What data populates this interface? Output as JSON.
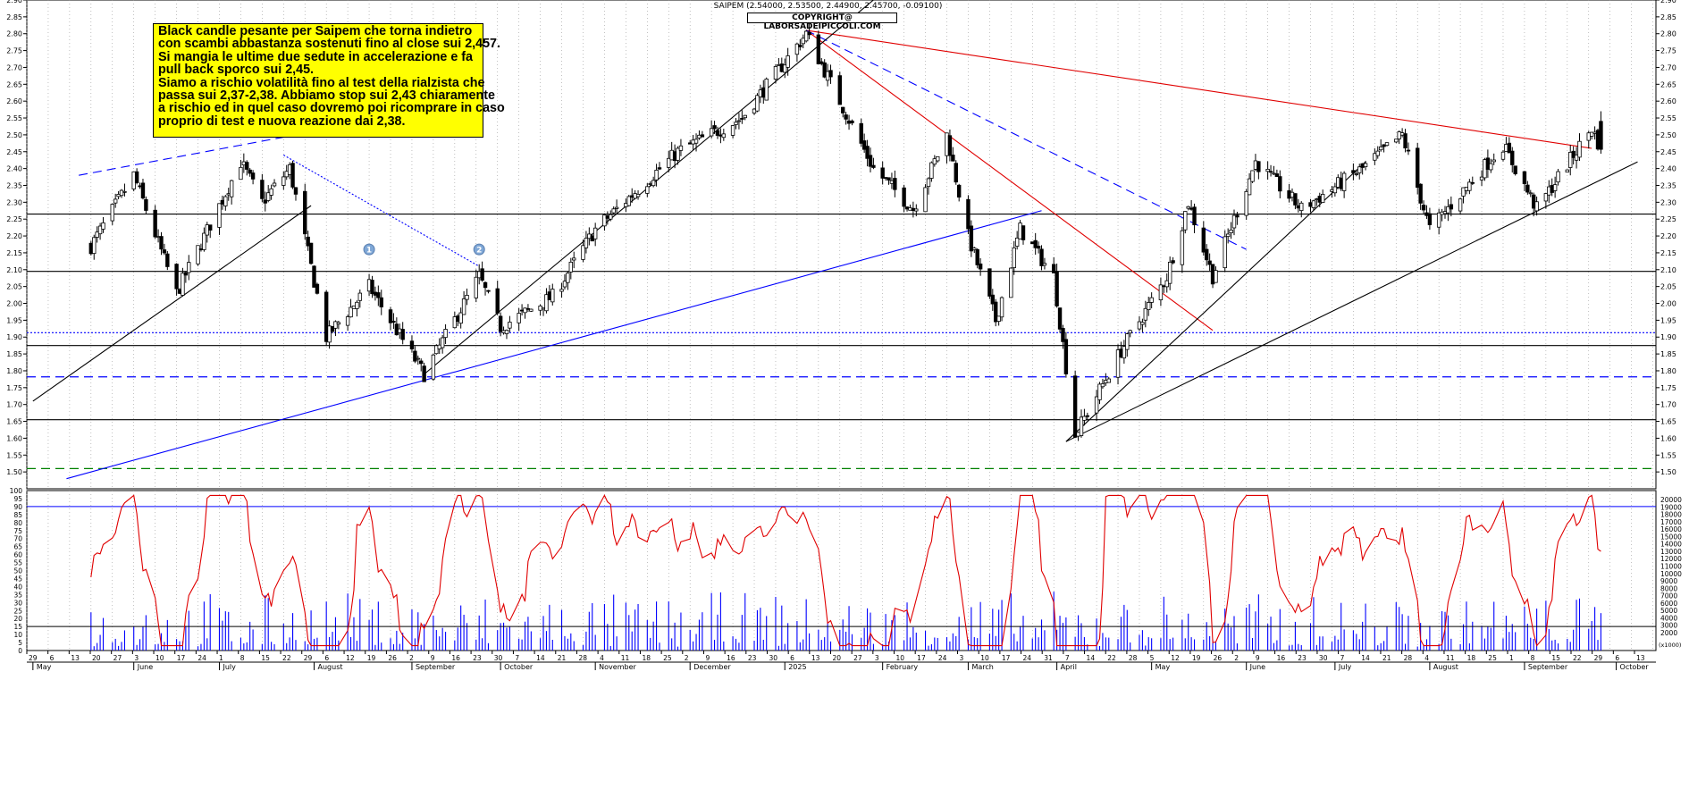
{
  "header": {
    "title": "SAIPEM (2.54000, 2.53500, 2.44900, 2.45700, -0.09100)",
    "copyright": "COPYRIGHT@ LABORSADEIPICCOLI.COM"
  },
  "annotation": {
    "lines": [
      "Black candle pesante per Saipem che torna indietro",
      "con scambi abbastanza sostenuti fino al close sui 2,457.",
      "Si mangia le ultime due sedute in accelerazione e fa",
      "pull back sporco sui 2,45.",
      "Siamo a rischio volatilità fino al test della rialzista che",
      "passa sui 2,37-2,38. Abbiamo stop sui 2,43 chiaramente",
      "a rischio ed in quel caso dovremo poi ricomprare in caso",
      "proprio di test e nuova reazione dai 2,38."
    ]
  },
  "colors": {
    "candle_up": "#ffffff",
    "candle_down": "#000000",
    "volume": "#0000ff",
    "oscillator": "#e00000",
    "note_bg": "#ffff00",
    "resistance": "#e00000",
    "support": "#000000",
    "blue_line": "#0000ff",
    "green_line": "#008000"
  },
  "chart_data": [
    {
      "type": "candlestick",
      "ylim": [
        1.45,
        2.9
      ],
      "y_ticks": [
        "2.90",
        "2.85",
        "2.80",
        "2.75",
        "2.70",
        "2.65",
        "2.60",
        "2.55",
        "2.50",
        "2.45",
        "2.40",
        "2.35",
        "2.30",
        "2.25",
        "2.20",
        "2.15",
        "2.10",
        "2.05",
        "2.00",
        "1.95",
        "1.90",
        "1.85",
        "1.80",
        "1.75",
        "1.70",
        "1.65",
        "1.60",
        "1.55",
        "1.50"
      ],
      "last_candle": {
        "open": 2.54,
        "high": 2.535,
        "low": 2.449,
        "close": 2.457,
        "change": -0.091
      },
      "anchors": [
        {
          "date": "2024-05-20",
          "price": 2.17
        },
        {
          "date": "2024-06-03",
          "price": 2.38
        },
        {
          "date": "2024-06-17",
          "price": 2.03
        },
        {
          "date": "2024-07-08",
          "price": 2.42
        },
        {
          "date": "2024-07-15",
          "price": 2.3
        },
        {
          "date": "2024-07-24",
          "price": 2.4
        },
        {
          "date": "2024-08-05",
          "price": 1.9
        },
        {
          "date": "2024-08-19",
          "price": 2.05
        },
        {
          "date": "2024-09-06",
          "price": 1.79
        },
        {
          "date": "2024-09-24",
          "price": 2.08
        },
        {
          "date": "2024-10-01",
          "price": 1.93
        },
        {
          "date": "2024-10-18",
          "price": 2.02
        },
        {
          "date": "2024-11-01",
          "price": 2.22
        },
        {
          "date": "2024-11-28",
          "price": 2.45
        },
        {
          "date": "2024-12-19",
          "price": 2.55
        },
        {
          "date": "2025-01-09",
          "price": 2.8
        },
        {
          "date": "2025-01-31",
          "price": 2.4
        },
        {
          "date": "2025-02-13",
          "price": 2.28
        },
        {
          "date": "2025-02-24",
          "price": 2.5
        },
        {
          "date": "2025-03-03",
          "price": 2.2
        },
        {
          "date": "2025-03-12",
          "price": 1.95
        },
        {
          "date": "2025-03-20",
          "price": 2.22
        },
        {
          "date": "2025-03-31",
          "price": 2.08
        },
        {
          "date": "2025-04-07",
          "price": 1.61
        },
        {
          "date": "2025-04-22",
          "price": 1.86
        },
        {
          "date": "2025-05-07",
          "price": 2.08
        },
        {
          "date": "2025-05-14",
          "price": 2.3
        },
        {
          "date": "2025-05-22",
          "price": 2.08
        },
        {
          "date": "2025-06-05",
          "price": 2.42
        },
        {
          "date": "2025-06-20",
          "price": 2.28
        },
        {
          "date": "2025-07-10",
          "price": 2.4
        },
        {
          "date": "2025-07-23",
          "price": 2.5
        },
        {
          "date": "2025-08-01",
          "price": 2.22
        },
        {
          "date": "2025-08-25",
          "price": 2.47
        },
        {
          "date": "2025-09-05",
          "price": 2.28
        },
        {
          "date": "2025-09-23",
          "price": 2.52
        },
        {
          "date": "2025-09-26",
          "price": 2.457
        }
      ],
      "horizontal_lines": [
        {
          "price": 2.265,
          "color": "#000000",
          "style": "solid"
        },
        {
          "price": 2.095,
          "color": "#000000",
          "style": "solid"
        },
        {
          "price": 1.913,
          "color": "#0000ff",
          "style": "dotted"
        },
        {
          "price": 1.875,
          "color": "#000000",
          "style": "solid"
        },
        {
          "price": 1.782,
          "color": "#0000ff",
          "style": "dashed"
        },
        {
          "price": 1.655,
          "color": "#000000",
          "style": "solid"
        },
        {
          "price": 1.51,
          "color": "#008000",
          "style": "dashed"
        }
      ],
      "trendlines": [
        {
          "from": {
            "date": "2025-01-09",
            "price": 2.81
          },
          "to": {
            "date": "2025-09-23",
            "price": 2.46
          },
          "color": "#e00000",
          "style": "solid"
        },
        {
          "from": {
            "date": "2025-01-09",
            "price": 2.81
          },
          "to": {
            "date": "2025-05-22",
            "price": 1.92
          },
          "color": "#e00000",
          "style": "solid"
        },
        {
          "from": {
            "date": "2025-01-09",
            "price": 2.81
          },
          "to": {
            "date": "2025-06-02",
            "price": 2.16
          },
          "color": "#0000ff",
          "style": "dashed"
        },
        {
          "from": {
            "date": "2024-05-01",
            "price": 1.71
          },
          "to": {
            "date": "2024-07-31",
            "price": 2.29
          },
          "color": "#000000",
          "style": "solid"
        },
        {
          "from": {
            "date": "2024-09-06",
            "price": 1.79
          },
          "to": {
            "date": "2025-01-31",
            "price": 2.9
          },
          "color": "#000000",
          "style": "solid"
        },
        {
          "from": {
            "date": "2024-05-12",
            "price": 1.48
          },
          "to": {
            "date": "2025-03-27",
            "price": 2.275
          },
          "color": "#0000ff",
          "style": "solid"
        },
        {
          "from": {
            "date": "2025-04-04",
            "price": 1.59
          },
          "to": {
            "date": "2025-10-08",
            "price": 2.42
          },
          "color": "#000000",
          "style": "solid"
        },
        {
          "from": {
            "date": "2025-04-04",
            "price": 1.59
          },
          "to": {
            "date": "2025-07-11",
            "price": 2.42
          },
          "color": "#000000",
          "style": "solid"
        },
        {
          "from": {
            "date": "2024-05-16",
            "price": 2.38
          },
          "to": {
            "date": "2024-08-01",
            "price": 2.51
          },
          "color": "#0000ff",
          "style": "dashed"
        },
        {
          "from": {
            "date": "2024-07-22",
            "price": 2.44
          },
          "to": {
            "date": "2024-09-24",
            "price": 2.11
          },
          "color": "#0000ff",
          "style": "dotted"
        }
      ],
      "markers": [
        {
          "label": "1"
        },
        {
          "label": "2"
        }
      ]
    },
    {
      "type": "oscillator_with_volume",
      "left_ylim": [
        0,
        100
      ],
      "left_ticks": [
        "0",
        "5",
        "10",
        "15",
        "20",
        "25",
        "30",
        "35",
        "40",
        "45",
        "50",
        "55",
        "60",
        "65",
        "70",
        "75",
        "80",
        "85",
        "90",
        "95",
        "100"
      ],
      "right_ticks": [
        "2000",
        "3000",
        "4000",
        "5000",
        "6000",
        "7000",
        "8000",
        "9000",
        "10000",
        "11000",
        "12000",
        "13000",
        "14000",
        "15000",
        "16000",
        "17000",
        "18000",
        "19000",
        "20000"
      ],
      "right_axis_label": "(x1000)",
      "bands": [
        90,
        15
      ],
      "last_oscillator_value": 62
    }
  ],
  "x_axis": {
    "months": [
      {
        "label": "May",
        "date": "2024-05-01"
      },
      {
        "label": "June",
        "date": "2024-06-03"
      },
      {
        "label": "July",
        "date": "2024-07-01"
      },
      {
        "label": "August",
        "date": "2024-08-01"
      },
      {
        "label": "September",
        "date": "2024-09-02"
      },
      {
        "label": "October",
        "date": "2024-10-01"
      },
      {
        "label": "November",
        "date": "2024-11-01"
      },
      {
        "label": "December",
        "date": "2024-12-02"
      },
      {
        "label": "2025",
        "date": "2025-01-02"
      },
      {
        "label": "February",
        "date": "2025-02-03"
      },
      {
        "label": "March",
        "date": "2025-03-03"
      },
      {
        "label": "April",
        "date": "2025-04-01"
      },
      {
        "label": "May",
        "date": "2025-05-02"
      },
      {
        "label": "June",
        "date": "2025-06-02"
      },
      {
        "label": "July",
        "date": "2025-07-01"
      },
      {
        "label": "August",
        "date": "2025-08-01"
      },
      {
        "label": "September",
        "date": "2025-09-01"
      },
      {
        "label": "October",
        "date": "2025-10-01"
      }
    ],
    "days": [
      "29",
      "6",
      "13",
      "20",
      "27",
      "3",
      "10",
      "17",
      "24",
      "1",
      "8",
      "15",
      "22",
      "29",
      "6",
      "12",
      "19",
      "26",
      "2",
      "9",
      "16",
      "23",
      "30",
      "7",
      "14",
      "21",
      "28",
      "4",
      "11",
      "18",
      "25",
      "2",
      "9",
      "16",
      "23",
      "30",
      "6",
      "13",
      "20",
      "27",
      "3",
      "10",
      "17",
      "24",
      "3",
      "10",
      "17",
      "24",
      "31",
      "7",
      "14",
      "22",
      "28",
      "5",
      "12",
      "19",
      "26",
      "2",
      "9",
      "16",
      "23",
      "30",
      "7",
      "14",
      "21",
      "28",
      "4",
      "11",
      "18",
      "25",
      "1",
      "8",
      "15",
      "22",
      "29",
      "6",
      "13"
    ]
  }
}
